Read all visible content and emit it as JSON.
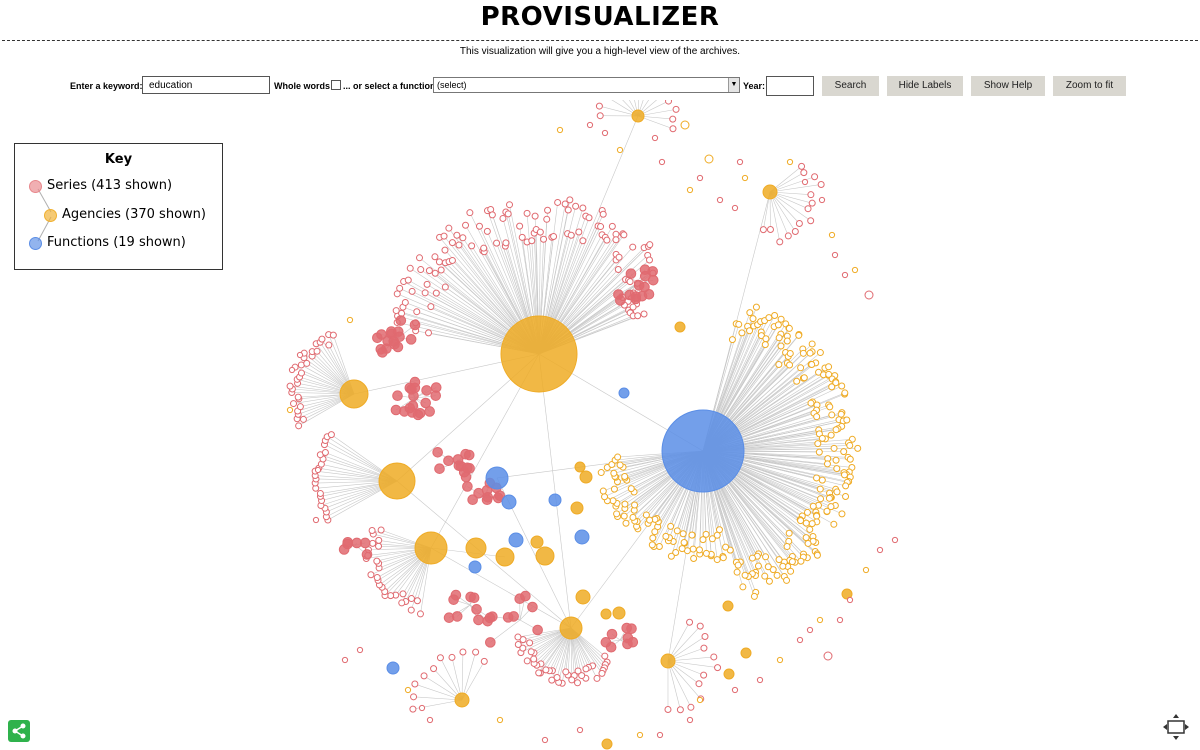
{
  "header": {
    "title": "PROVISUALIZER",
    "subtitle": "This visualization will give you a high-level view of the archives."
  },
  "toolbar": {
    "keyword_label": "Enter a keyword:",
    "keyword_value": "education",
    "whole_words_label": "Whole words",
    "function_label": "... or select a function:",
    "function_selected": "(select)",
    "year_label": "Year:",
    "year_value": "",
    "search_button": "Search",
    "hide_labels_button": "Hide Labels",
    "show_help_button": "Show Help",
    "zoom_button": "Zoom to fit"
  },
  "key": {
    "title": "Key",
    "items": [
      {
        "label": "Series (413 shown)",
        "color": "#e8878c"
      },
      {
        "label": "Agencies (370 shown)",
        "color": "#f0b030"
      },
      {
        "label": "Functions (19 shown)",
        "color": "#5b8ee6"
      }
    ]
  },
  "colors": {
    "series": "#e06a70",
    "agency": "#efab25",
    "function": "#5b8ee6",
    "edge": "#c8c8c8"
  },
  "icons": {
    "share": "share-icon",
    "fit": "fullscreen-icon"
  }
}
